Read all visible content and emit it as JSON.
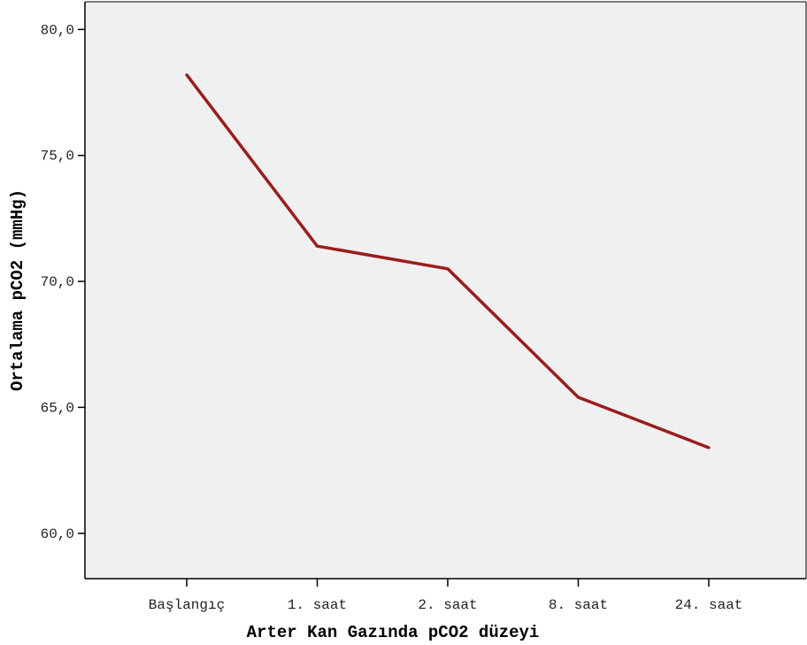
{
  "chart_data": {
    "type": "line",
    "xlabel": "Arter Kan Gazında pCO2 düzeyi",
    "ylabel": "Ortalama pCO2 (mmHg)",
    "categories": [
      "Başlangıç",
      "1. saat",
      "2. saat",
      "8. saat",
      "24. saat"
    ],
    "series": [
      {
        "values": [
          78.2,
          71.4,
          70.5,
          65.4,
          63.4
        ]
      }
    ],
    "ylim": [
      58.2,
      81.1
    ],
    "yticks": [
      60,
      65,
      70,
      75,
      80
    ],
    "ytick_labels": [
      "60,0",
      "65,0",
      "70,0",
      "75,0",
      "80,0"
    ],
    "grid": false,
    "colors": {
      "plot_background": "#f0f0f0",
      "line": "#9b1c1c",
      "axis": "#000000"
    }
  }
}
